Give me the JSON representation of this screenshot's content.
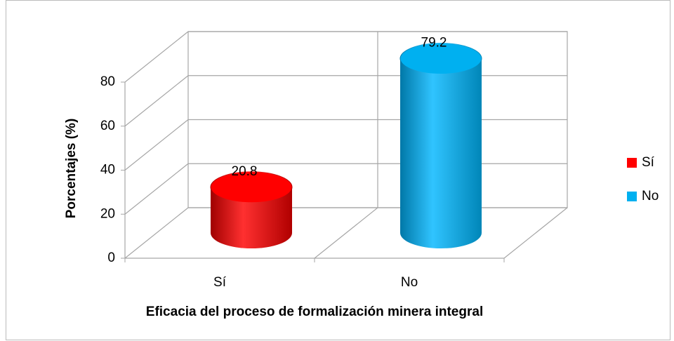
{
  "chart_data": {
    "type": "bar3d",
    "categories": [
      "Sí",
      "No"
    ],
    "values": [
      20.8,
      79.2
    ],
    "colors": [
      "#ff0000",
      "#00b0f0"
    ],
    "ylabel": "Porcentajes (%)",
    "xlabel": "Eficacia del proceso de formalización minera integral",
    "ylim": [
      0,
      80
    ],
    "yticks": [
      0,
      20,
      40,
      60,
      80
    ],
    "grid": true,
    "legend": "right"
  }
}
